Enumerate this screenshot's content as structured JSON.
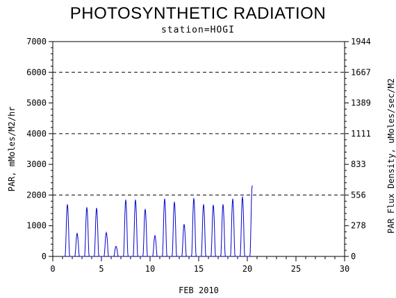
{
  "chart_data": {
    "type": "line",
    "title": "PHOTOSYNTHETIC RADIATION",
    "subtitle": "station=HOGI",
    "xlabel": "FEB 2010",
    "ylabel": "PAR, mMoles/M2/hr",
    "ylabel_right": "PAR Flux Density, uMoles/sec/M2",
    "xlim": [
      0,
      30
    ],
    "ylim": [
      0,
      7000
    ],
    "ylim_right": [
      0,
      1944
    ],
    "x_ticks": [
      "0",
      "5",
      "10",
      "15",
      "20",
      "25",
      "30"
    ],
    "y_ticks": [
      "0",
      "1000",
      "2000",
      "3000",
      "4000",
      "5000",
      "6000",
      "7000"
    ],
    "y_ticks_right": [
      "0",
      "278",
      "556",
      "833",
      "1111",
      "1389",
      "1667",
      "1944"
    ],
    "gridlines_dashed_y": [
      2000,
      4000,
      6000
    ],
    "series_color": "#0000cc",
    "daily_peaks": [
      {
        "day": 1.5,
        "value": 1700
      },
      {
        "day": 2.5,
        "value": 750
      },
      {
        "day": 3.5,
        "value": 1600
      },
      {
        "day": 4.5,
        "value": 1580
      },
      {
        "day": 5.5,
        "value": 780
      },
      {
        "day": 6.5,
        "value": 330
      },
      {
        "day": 7.5,
        "value": 1850
      },
      {
        "day": 8.5,
        "value": 1850
      },
      {
        "day": 9.5,
        "value": 1550
      },
      {
        "day": 10.5,
        "value": 680
      },
      {
        "day": 11.5,
        "value": 1880
      },
      {
        "day": 12.5,
        "value": 1780
      },
      {
        "day": 13.5,
        "value": 1050
      },
      {
        "day": 14.5,
        "value": 1900
      },
      {
        "day": 15.5,
        "value": 1700
      },
      {
        "day": 16.5,
        "value": 1680
      },
      {
        "day": 17.5,
        "value": 1700
      },
      {
        "day": 18.5,
        "value": 1880
      },
      {
        "day": 19.5,
        "value": 1950
      },
      {
        "day": 20.5,
        "value": 2300
      }
    ]
  }
}
